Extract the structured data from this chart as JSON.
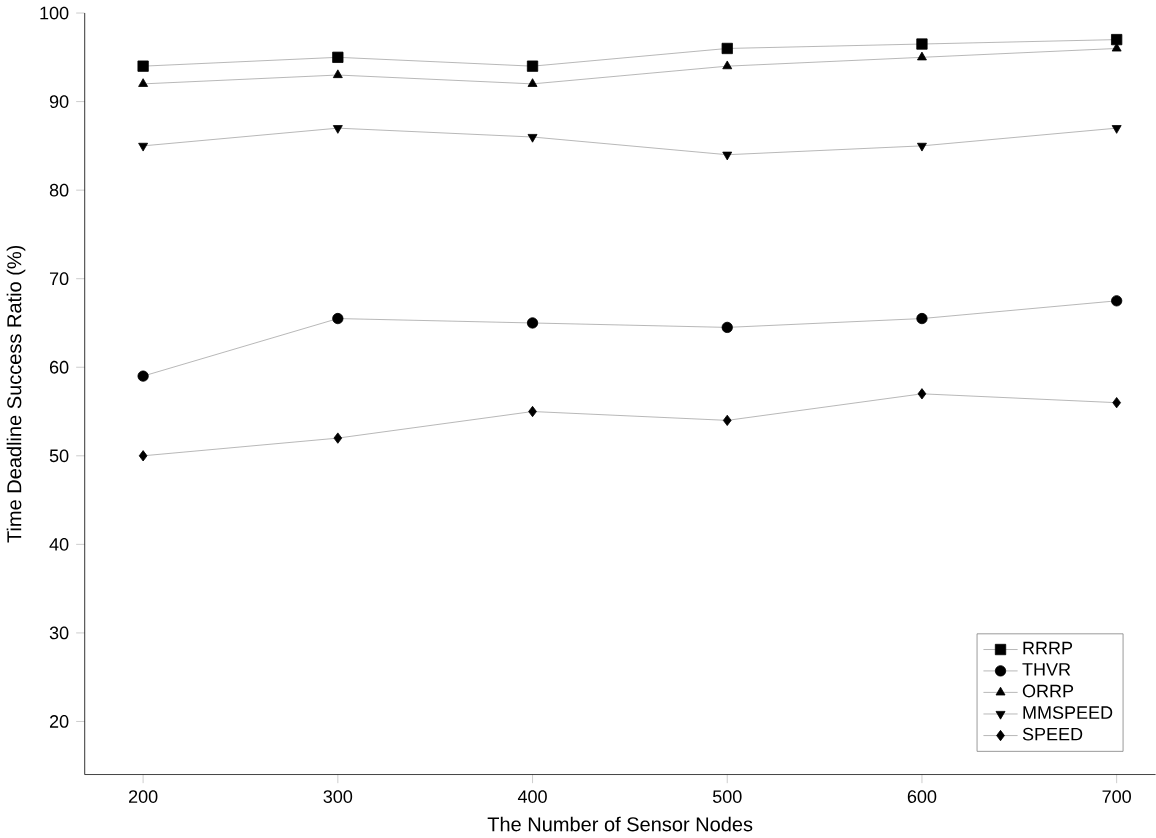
{
  "chart_data": {
    "type": "line",
    "xlabel": "The Number of Sensor Nodes",
    "ylabel": "Time Deadline Success Ratio (%)",
    "x": [
      200,
      300,
      400,
      500,
      600,
      700
    ],
    "series": [
      {
        "name": "RRRP",
        "color": "#000000",
        "marker": "square",
        "values": [
          94,
          95,
          94,
          96,
          96.5,
          97
        ]
      },
      {
        "name": "THVR",
        "color": "#000000",
        "marker": "circle",
        "values": [
          59,
          65.5,
          65,
          64.5,
          65.5,
          67.5
        ]
      },
      {
        "name": "ORRP",
        "color": "#000000",
        "marker": "triangle",
        "values": [
          92,
          93,
          92,
          94,
          95,
          96
        ]
      },
      {
        "name": "MMSPEED",
        "color": "#000000",
        "marker": "triangle-down",
        "values": [
          85,
          87,
          86,
          84,
          85,
          87
        ]
      },
      {
        "name": "SPEED",
        "color": "#000000",
        "marker": "diamond",
        "values": [
          50,
          52,
          55,
          54,
          57,
          56
        ]
      }
    ],
    "xlim": [
      170,
      720
    ],
    "ylim": [
      14,
      100
    ],
    "xticks": [
      200,
      300,
      400,
      500,
      600,
      700
    ],
    "yticks": [
      20,
      30,
      40,
      50,
      60,
      70,
      80,
      90,
      100
    ],
    "legend": "bottom right",
    "grid": false,
    "line_style": "solid"
  }
}
